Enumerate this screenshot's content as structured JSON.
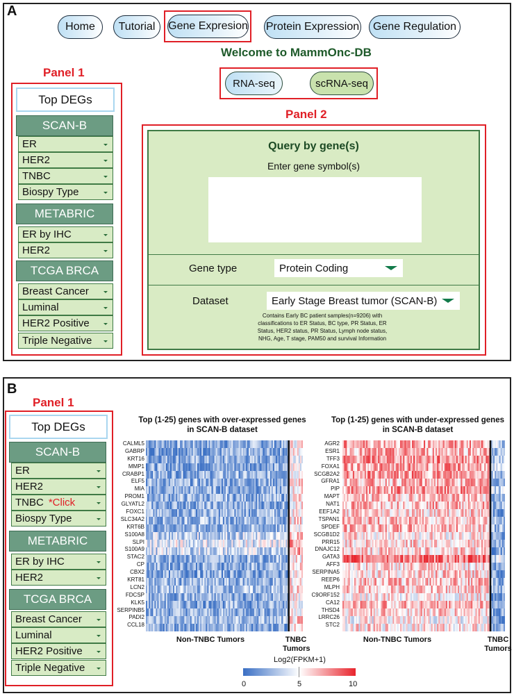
{
  "panel_a": {
    "label": "A",
    "nav": [
      "Home",
      "Tutorial",
      "Gene Expresion",
      "Protein Expression",
      "Gene Regulation"
    ],
    "welcome": "Welcome to MammOnc-DB",
    "panel1_label": "Panel 1",
    "panel2_label": "Panel 2",
    "seq": {
      "rna": "RNA-seq",
      "scrna": "scRNA-seq"
    },
    "sidebar": {
      "top": "Top DEGs",
      "groups": [
        {
          "header": "SCAN-B",
          "items": [
            "ER",
            "HER2",
            "TNBC",
            "Biospy Type"
          ]
        },
        {
          "header": "METABRIC",
          "items": [
            "ER by IHC",
            "HER2"
          ]
        },
        {
          "header": "TCGA BRCA",
          "items": [
            "Breast Cancer",
            "Luminal",
            "HER2 Positive",
            "Triple Negative"
          ]
        }
      ]
    },
    "query": {
      "title": "Query by gene(s)",
      "subtitle": "Enter gene symbol(s)",
      "gene_type_label": "Gene type",
      "gene_type_value": "Protein Coding",
      "dataset_label": "Dataset",
      "dataset_value": "Early Stage Breast tumor (SCAN-B)",
      "note": "Contains Early BC patient samples(n=9206) with classifications to ER Status, BC type, PR Status, ER Status, HER2 status, PR Status, Lymph node status, NHG, Age, T stage, PAM50 and survival Information"
    }
  },
  "panel_b": {
    "label": "B",
    "panel1_label": "Panel 1",
    "click_note": "*Click",
    "sidebar": {
      "top": "Top DEGs",
      "groups": [
        {
          "header": "SCAN-B",
          "items": [
            "ER",
            "HER2",
            "TNBC",
            "Biospy Type"
          ]
        },
        {
          "header": "METABRIC",
          "items": [
            "ER by IHC",
            "HER2"
          ]
        },
        {
          "header": "TCGA BRCA",
          "items": [
            "Breast Cancer",
            "Luminal",
            "HER2 Positive",
            "Triple Negative"
          ]
        }
      ]
    }
  },
  "chart_data": [
    {
      "type": "heatmap",
      "title": "Top (1-25) genes with over-expressed genes in SCAN-B dataset",
      "rows": [
        "CALML5",
        "GABRP",
        "KRT16",
        "MMP1",
        "CRABP1",
        "ELF5",
        "MIA",
        "PROM1",
        "GLYATL2",
        "FOXC1",
        "SLC34A2",
        "KRT6B",
        "S100A8",
        "SLPI",
        "S100A9",
        "STAC2",
        "CP",
        "CBX2",
        "KRT81",
        "LCN2",
        "FDCSP",
        "KLK5",
        "SERPINB5",
        "PADI2",
        "CCL18"
      ],
      "groups": [
        "Non-TNBC Tumors",
        "TNBC Tumors"
      ],
      "colorbar": {
        "label": "Log2(FPKM+1)",
        "ticks": [
          0,
          5,
          10
        ],
        "colors": [
          "#3a6fc4",
          "#ffffff",
          "#e8242c"
        ]
      }
    },
    {
      "type": "heatmap",
      "title": "Top (1-25) genes with under-expressed genes in SCAN-B dataset",
      "rows": [
        "AGR2",
        "ESR1",
        "TFF3",
        "FOXA1",
        "SCGB2A2",
        "GFRA1",
        "PIP",
        "MAPT",
        "NAT1",
        "EEF1A2",
        "TSPAN1",
        "SPDEF",
        "SCGB1D2",
        "PRR15",
        "DNAJC12",
        "GATA3",
        "AFF3",
        "SERPINA5",
        "REEP6",
        "MLPH",
        "C9ORF152",
        "CA12",
        "THSD4",
        "LRRC26",
        "STC2"
      ],
      "groups": [
        "Non-TNBC Tumors",
        "TNBC Tumors"
      ],
      "colorbar": {
        "label": "Log2(FPKM+1)",
        "ticks": [
          0,
          5,
          10
        ],
        "colors": [
          "#3a6fc4",
          "#ffffff",
          "#e8242c"
        ]
      }
    }
  ]
}
